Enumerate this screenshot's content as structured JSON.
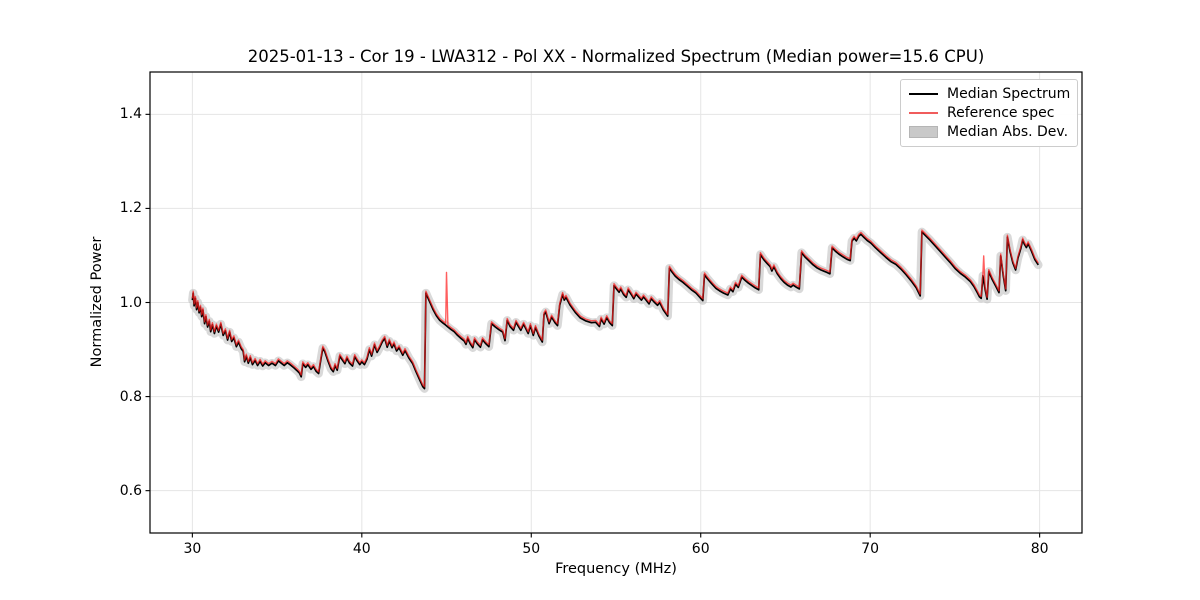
{
  "chart_data": {
    "type": "line",
    "title": "2025-01-13 - Cor 19 - LWA312 - Pol XX - Normalized Spectrum (Median power=15.6 CPU)",
    "xlabel": "Frequency (MHz)",
    "ylabel": "Normalized Power",
    "xlim": [
      27.5,
      82.5
    ],
    "ylim": [
      0.51,
      1.49
    ],
    "grid": true,
    "grid_color": "#e5e5e5",
    "legend_position": "upper right",
    "x_ticks": [
      30,
      40,
      50,
      60,
      70,
      80
    ],
    "x_tick_labels": [
      "30",
      "40",
      "50",
      "60",
      "70",
      "80"
    ],
    "y_ticks": [
      0.6,
      0.8,
      1.0,
      1.2,
      1.4
    ],
    "y_tick_labels": [
      "0.6",
      "0.8",
      "1.0",
      "1.2",
      "1.4"
    ],
    "series": [
      {
        "name": "Median Spectrum",
        "type": "line",
        "color": "#000000",
        "points": [
          [
            30.0,
            1.005
          ],
          [
            30.05,
            1.02
          ],
          [
            30.1,
            0.993
          ],
          [
            30.18,
            1.009
          ],
          [
            30.25,
            0.985
          ],
          [
            30.32,
            1.0
          ],
          [
            30.4,
            0.978
          ],
          [
            30.48,
            0.99
          ],
          [
            30.55,
            0.97
          ],
          [
            30.62,
            0.984
          ],
          [
            30.72,
            0.955
          ],
          [
            30.8,
            0.97
          ],
          [
            30.9,
            0.948
          ],
          [
            31.0,
            0.96
          ],
          [
            31.08,
            0.938
          ],
          [
            31.18,
            0.953
          ],
          [
            31.3,
            0.934
          ],
          [
            31.42,
            0.95
          ],
          [
            31.55,
            0.937
          ],
          [
            31.68,
            0.954
          ],
          [
            31.82,
            0.93
          ],
          [
            31.95,
            0.94
          ],
          [
            32.08,
            0.92
          ],
          [
            32.2,
            0.937
          ],
          [
            32.32,
            0.917
          ],
          [
            32.45,
            0.925
          ],
          [
            32.6,
            0.906
          ],
          [
            32.72,
            0.916
          ],
          [
            32.88,
            0.902
          ],
          [
            33.0,
            0.896
          ],
          [
            33.08,
            0.874
          ],
          [
            33.18,
            0.886
          ],
          [
            33.3,
            0.871
          ],
          [
            33.42,
            0.883
          ],
          [
            33.55,
            0.868
          ],
          [
            33.7,
            0.877
          ],
          [
            33.85,
            0.866
          ],
          [
            34.0,
            0.875
          ],
          [
            34.15,
            0.865
          ],
          [
            34.3,
            0.872
          ],
          [
            34.5,
            0.866
          ],
          [
            34.7,
            0.871
          ],
          [
            34.9,
            0.866
          ],
          [
            35.08,
            0.876
          ],
          [
            35.25,
            0.871
          ],
          [
            35.42,
            0.866
          ],
          [
            35.6,
            0.872
          ],
          [
            35.8,
            0.867
          ],
          [
            36.0,
            0.861
          ],
          [
            36.18,
            0.855
          ],
          [
            36.32,
            0.85
          ],
          [
            36.42,
            0.842
          ],
          [
            36.52,
            0.87
          ],
          [
            36.68,
            0.862
          ],
          [
            36.82,
            0.868
          ],
          [
            37.0,
            0.858
          ],
          [
            37.15,
            0.864
          ],
          [
            37.3,
            0.854
          ],
          [
            37.45,
            0.849
          ],
          [
            37.58,
            0.878
          ],
          [
            37.7,
            0.903
          ],
          [
            37.82,
            0.895
          ],
          [
            38.0,
            0.876
          ],
          [
            38.18,
            0.859
          ],
          [
            38.32,
            0.853
          ],
          [
            38.42,
            0.866
          ],
          [
            38.55,
            0.856
          ],
          [
            38.7,
            0.886
          ],
          [
            38.85,
            0.878
          ],
          [
            39.0,
            0.87
          ],
          [
            39.12,
            0.882
          ],
          [
            39.28,
            0.871
          ],
          [
            39.45,
            0.865
          ],
          [
            39.58,
            0.885
          ],
          [
            39.72,
            0.876
          ],
          [
            39.88,
            0.868
          ],
          [
            40.0,
            0.874
          ],
          [
            40.15,
            0.868
          ],
          [
            40.3,
            0.879
          ],
          [
            40.45,
            0.9
          ],
          [
            40.58,
            0.886
          ],
          [
            40.75,
            0.91
          ],
          [
            40.9,
            0.894
          ],
          [
            41.05,
            0.904
          ],
          [
            41.2,
            0.916
          ],
          [
            41.35,
            0.924
          ],
          [
            41.5,
            0.905
          ],
          [
            41.62,
            0.918
          ],
          [
            41.78,
            0.904
          ],
          [
            41.9,
            0.912
          ],
          [
            42.05,
            0.897
          ],
          [
            42.2,
            0.904
          ],
          [
            42.42,
            0.888
          ],
          [
            42.55,
            0.898
          ],
          [
            42.78,
            0.882
          ],
          [
            43.0,
            0.87
          ],
          [
            43.2,
            0.853
          ],
          [
            43.42,
            0.835
          ],
          [
            43.6,
            0.821
          ],
          [
            43.7,
            0.817
          ],
          [
            43.78,
            1.02
          ],
          [
            43.9,
            1.01
          ],
          [
            44.05,
            0.998
          ],
          [
            44.22,
            0.984
          ],
          [
            44.4,
            0.972
          ],
          [
            44.6,
            0.962
          ],
          [
            44.8,
            0.956
          ],
          [
            44.95,
            0.952
          ],
          [
            45.08,
            0.948
          ],
          [
            45.25,
            0.943
          ],
          [
            45.45,
            0.938
          ],
          [
            45.65,
            0.93
          ],
          [
            45.85,
            0.924
          ],
          [
            46.05,
            0.918
          ],
          [
            46.15,
            0.911
          ],
          [
            46.25,
            0.924
          ],
          [
            46.4,
            0.912
          ],
          [
            46.55,
            0.904
          ],
          [
            46.65,
            0.921
          ],
          [
            46.82,
            0.912
          ],
          [
            47.0,
            0.905
          ],
          [
            47.12,
            0.921
          ],
          [
            47.3,
            0.913
          ],
          [
            47.5,
            0.906
          ],
          [
            47.65,
            0.955
          ],
          [
            47.88,
            0.948
          ],
          [
            48.1,
            0.942
          ],
          [
            48.32,
            0.937
          ],
          [
            48.45,
            0.919
          ],
          [
            48.58,
            0.962
          ],
          [
            48.75,
            0.949
          ],
          [
            48.95,
            0.941
          ],
          [
            49.1,
            0.958
          ],
          [
            49.38,
            0.941
          ],
          [
            49.55,
            0.954
          ],
          [
            49.82,
            0.934
          ],
          [
            49.95,
            0.951
          ],
          [
            50.12,
            0.93
          ],
          [
            50.25,
            0.947
          ],
          [
            50.45,
            0.929
          ],
          [
            50.65,
            0.916
          ],
          [
            50.75,
            0.974
          ],
          [
            50.85,
            0.98
          ],
          [
            51.05,
            0.955
          ],
          [
            51.2,
            0.969
          ],
          [
            51.4,
            0.957
          ],
          [
            51.55,
            0.951
          ],
          [
            51.68,
            0.994
          ],
          [
            51.85,
            1.017
          ],
          [
            51.95,
            1.005
          ],
          [
            52.05,
            1.011
          ],
          [
            52.3,
            0.994
          ],
          [
            52.6,
            0.979
          ],
          [
            52.9,
            0.967
          ],
          [
            53.2,
            0.961
          ],
          [
            53.55,
            0.957
          ],
          [
            53.8,
            0.958
          ],
          [
            54.02,
            0.949
          ],
          [
            54.12,
            0.965
          ],
          [
            54.3,
            0.954
          ],
          [
            54.45,
            0.968
          ],
          [
            54.62,
            0.957
          ],
          [
            54.78,
            0.951
          ],
          [
            54.88,
            1.036
          ],
          [
            55.05,
            1.028
          ],
          [
            55.18,
            1.022
          ],
          [
            55.28,
            1.029
          ],
          [
            55.45,
            1.017
          ],
          [
            55.6,
            1.011
          ],
          [
            55.72,
            1.027
          ],
          [
            55.9,
            1.017
          ],
          [
            56.05,
            1.008
          ],
          [
            56.18,
            1.018
          ],
          [
            56.35,
            1.011
          ],
          [
            56.5,
            1.005
          ],
          [
            56.62,
            1.012
          ],
          [
            56.8,
            1.004
          ],
          [
            56.95,
            0.997
          ],
          [
            57.08,
            1.008
          ],
          [
            57.25,
            1.001
          ],
          [
            57.45,
            0.994
          ],
          [
            57.58,
            1.0
          ],
          [
            57.8,
            0.984
          ],
          [
            58.05,
            0.971
          ],
          [
            58.15,
            1.073
          ],
          [
            58.32,
            1.064
          ],
          [
            58.5,
            1.056
          ],
          [
            58.72,
            1.049
          ],
          [
            58.95,
            1.043
          ],
          [
            59.2,
            1.035
          ],
          [
            59.45,
            1.027
          ],
          [
            59.72,
            1.02
          ],
          [
            60.0,
            1.009
          ],
          [
            60.12,
            1.004
          ],
          [
            60.22,
            1.059
          ],
          [
            60.38,
            1.051
          ],
          [
            60.55,
            1.044
          ],
          [
            60.72,
            1.037
          ],
          [
            60.9,
            1.03
          ],
          [
            61.1,
            1.025
          ],
          [
            61.35,
            1.02
          ],
          [
            61.6,
            1.016
          ],
          [
            61.75,
            1.029
          ],
          [
            61.9,
            1.023
          ],
          [
            62.05,
            1.039
          ],
          [
            62.22,
            1.032
          ],
          [
            62.42,
            1.054
          ],
          [
            62.62,
            1.047
          ],
          [
            62.82,
            1.041
          ],
          [
            63.02,
            1.036
          ],
          [
            63.22,
            1.031
          ],
          [
            63.42,
            1.027
          ],
          [
            63.52,
            1.102
          ],
          [
            63.72,
            1.091
          ],
          [
            63.92,
            1.083
          ],
          [
            64.1,
            1.076
          ],
          [
            64.2,
            1.067
          ],
          [
            64.32,
            1.076
          ],
          [
            64.52,
            1.061
          ],
          [
            64.72,
            1.051
          ],
          [
            64.92,
            1.043
          ],
          [
            65.12,
            1.037
          ],
          [
            65.32,
            1.033
          ],
          [
            65.45,
            1.037
          ],
          [
            65.62,
            1.033
          ],
          [
            65.82,
            1.029
          ],
          [
            65.95,
            1.106
          ],
          [
            66.15,
            1.097
          ],
          [
            66.38,
            1.089
          ],
          [
            66.6,
            1.081
          ],
          [
            66.85,
            1.074
          ],
          [
            67.1,
            1.069
          ],
          [
            67.38,
            1.065
          ],
          [
            67.62,
            1.061
          ],
          [
            67.75,
            1.116
          ],
          [
            67.95,
            1.109
          ],
          [
            68.15,
            1.103
          ],
          [
            68.4,
            1.097
          ],
          [
            68.62,
            1.092
          ],
          [
            68.82,
            1.089
          ],
          [
            68.92,
            1.13
          ],
          [
            69.05,
            1.137
          ],
          [
            69.18,
            1.131
          ],
          [
            69.32,
            1.141
          ],
          [
            69.45,
            1.145
          ],
          [
            69.62,
            1.139
          ],
          [
            69.82,
            1.132
          ],
          [
            70.05,
            1.126
          ],
          [
            70.32,
            1.116
          ],
          [
            70.62,
            1.106
          ],
          [
            70.92,
            1.096
          ],
          [
            71.22,
            1.087
          ],
          [
            71.52,
            1.081
          ],
          [
            71.82,
            1.071
          ],
          [
            72.12,
            1.059
          ],
          [
            72.42,
            1.046
          ],
          [
            72.72,
            1.031
          ],
          [
            72.95,
            1.014
          ],
          [
            73.05,
            1.15
          ],
          [
            73.22,
            1.144
          ],
          [
            73.52,
            1.133
          ],
          [
            73.82,
            1.121
          ],
          [
            74.12,
            1.109
          ],
          [
            74.42,
            1.097
          ],
          [
            74.72,
            1.085
          ],
          [
            75.02,
            1.072
          ],
          [
            75.32,
            1.062
          ],
          [
            75.62,
            1.054
          ],
          [
            75.92,
            1.044
          ],
          [
            76.12,
            1.034
          ],
          [
            76.32,
            1.021
          ],
          [
            76.45,
            1.012
          ],
          [
            76.55,
            1.009
          ],
          [
            76.65,
            1.057
          ],
          [
            76.78,
            1.028
          ],
          [
            76.9,
            1.007
          ],
          [
            77.0,
            1.066
          ],
          [
            77.2,
            1.049
          ],
          [
            77.42,
            1.034
          ],
          [
            77.6,
            1.021
          ],
          [
            77.7,
            1.099
          ],
          [
            77.85,
            1.058
          ],
          [
            78.0,
            1.025
          ],
          [
            78.1,
            1.139
          ],
          [
            78.25,
            1.109
          ],
          [
            78.42,
            1.084
          ],
          [
            78.58,
            1.069
          ],
          [
            78.72,
            1.094
          ],
          [
            78.88,
            1.114
          ],
          [
            79.0,
            1.133
          ],
          [
            79.1,
            1.124
          ],
          [
            79.22,
            1.117
          ],
          [
            79.32,
            1.125
          ],
          [
            79.52,
            1.109
          ],
          [
            79.72,
            1.091
          ],
          [
            79.92,
            1.08
          ]
        ]
      },
      {
        "name": "Reference spec",
        "type": "line",
        "color": "#ff2020",
        "opacity": 0.72,
        "offset_from_median": 0.004,
        "extra_spikes": [
          [
            45.0,
            1.064
          ],
          [
            76.7,
            1.099
          ]
        ]
      },
      {
        "name": "Median Abs. Dev.",
        "type": "band",
        "color": "#c0c0c0",
        "opacity": 0.6,
        "halfwidth": 0.009
      }
    ]
  },
  "legend": {
    "items": [
      {
        "label": "Median Spectrum",
        "swatch": "line",
        "color": "#000000"
      },
      {
        "label": "Reference spec",
        "swatch": "line",
        "color": "#f05c5c"
      },
      {
        "label": "Median Abs. Dev.",
        "swatch": "patch",
        "color": "#c9c9c9"
      }
    ]
  }
}
